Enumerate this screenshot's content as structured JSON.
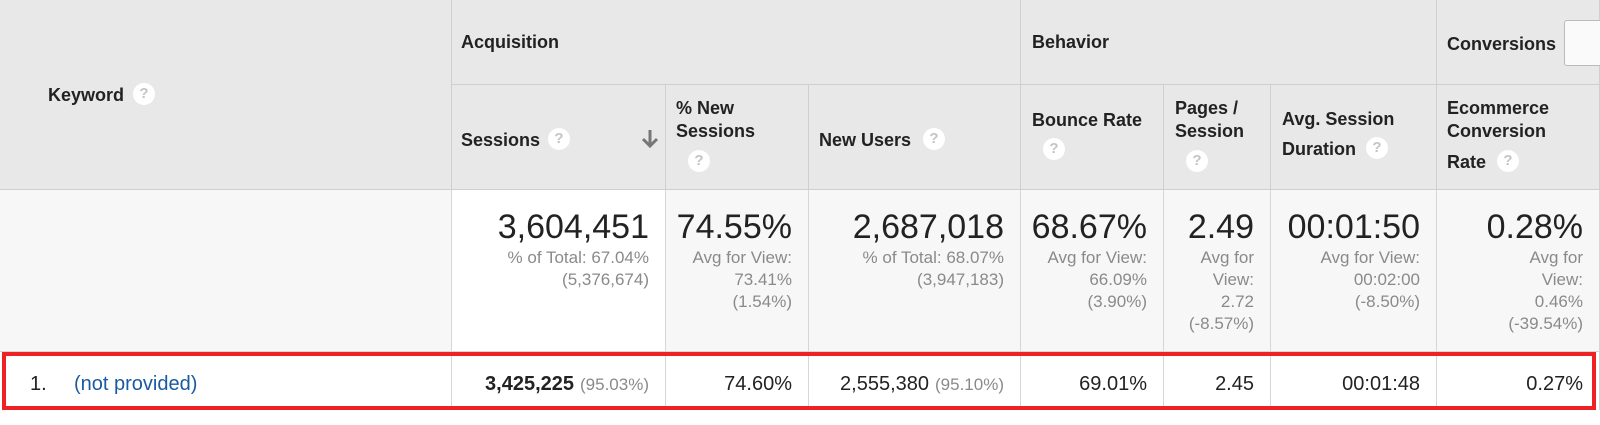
{
  "table": {
    "keyword_header": "Keyword",
    "groups": {
      "acquisition": "Acquisition",
      "behavior": "Behavior",
      "conversions": "Conversions"
    },
    "columns": {
      "sessions": "Sessions",
      "pct_new_sessions": [
        "% New",
        "Sessions"
      ],
      "new_users": "New Users",
      "bounce_rate": "Bounce Rate",
      "pages_session": [
        "Pages /",
        "Session"
      ],
      "avg_session_duration": [
        "Avg. Session",
        "Duration"
      ],
      "ecommerce_conversion_rate": [
        "Ecommerce",
        "Conversion",
        "Rate"
      ]
    },
    "sort_icon": "arrow-down-icon",
    "help_glyph": "?",
    "totals": {
      "sessions": {
        "value": "3,604,451",
        "lines": [
          "% of Total: 67.04%",
          "(5,376,674)"
        ]
      },
      "pct_new_sessions": {
        "value": "74.55%",
        "lines": [
          "Avg for View:",
          "73.41%",
          "(1.54%)"
        ]
      },
      "new_users": {
        "value": "2,687,018",
        "lines": [
          "% of Total: 68.07%",
          "(3,947,183)"
        ]
      },
      "bounce_rate": {
        "value": "68.67%",
        "lines": [
          "Avg for View:",
          "66.09%",
          "(3.90%)"
        ]
      },
      "pages_session": {
        "value": "2.49",
        "lines": [
          "Avg for",
          "View:",
          "2.72",
          "(-8.57%)"
        ]
      },
      "avg_session_duration": {
        "value": "00:01:50",
        "lines": [
          "Avg for View:",
          "00:02:00",
          "(-8.50%)"
        ]
      },
      "ecommerce_conversion_rate": {
        "value": "0.28%",
        "lines": [
          "Avg for",
          "View:",
          "0.46%",
          "(-39.54%)"
        ]
      }
    },
    "rows": [
      {
        "index": "1.",
        "keyword": "(not provided)",
        "sessions": "3,425,225",
        "sessions_pct": "(95.03%)",
        "pct_new_sessions": "74.60%",
        "new_users": "2,555,380",
        "new_users_pct": "(95.10%)",
        "bounce_rate": "69.01%",
        "pages_session": "2.45",
        "avg_session_duration": "00:01:48",
        "ecommerce_conversion_rate": "0.27%"
      }
    ]
  },
  "colors": {
    "link": "#1a5aa0",
    "highlight_border": "#ee2124",
    "header_bg": "#e8e8e8"
  }
}
